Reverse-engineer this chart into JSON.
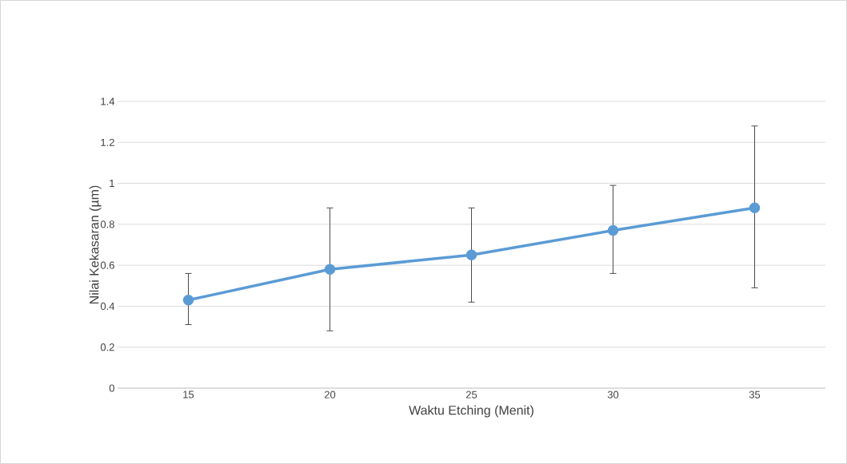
{
  "chart_data": {
    "type": "line",
    "xlabel": "Waktu Etching (Menit)",
    "ylabel": "Nilai Kekasaran (µm)",
    "categories": [
      "15",
      "20",
      "25",
      "30",
      "35"
    ],
    "series": [
      {
        "color": "#5b9bd5",
        "values": [
          0.43,
          0.58,
          0.65,
          0.77,
          0.88
        ],
        "errors": [
          [
            0.31,
            0.56
          ],
          [
            0.28,
            0.88
          ],
          [
            0.42,
            0.88
          ],
          [
            0.56,
            0.99
          ],
          [
            0.49,
            1.28
          ]
        ]
      }
    ],
    "ylim": [
      0,
      1.4
    ],
    "yticks": [
      0,
      0.2,
      0.4,
      0.6,
      0.8,
      1,
      1.2,
      1.4
    ],
    "grid": "y",
    "marker": "circle",
    "line_style": "solid"
  }
}
